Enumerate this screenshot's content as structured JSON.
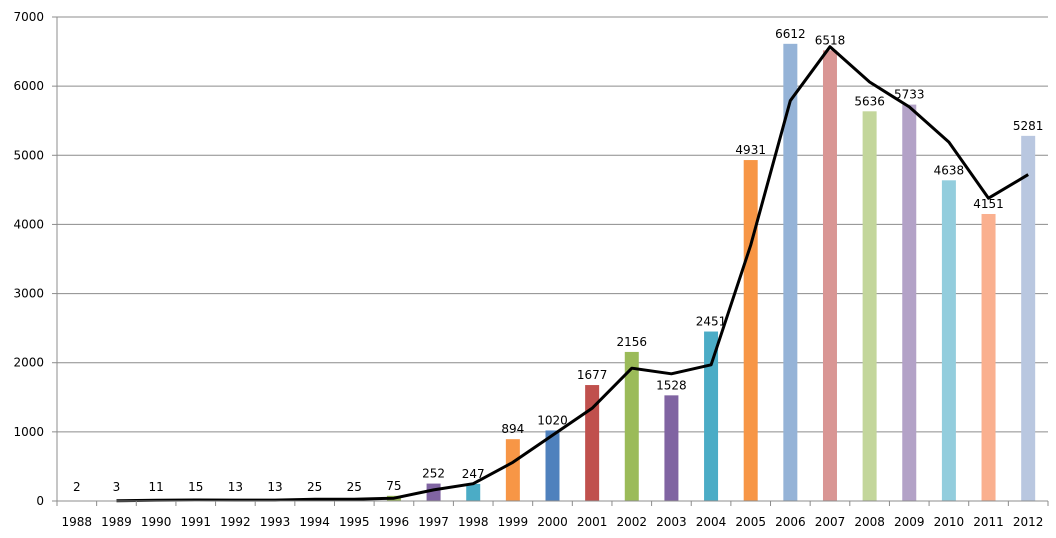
{
  "chart_data": {
    "type": "bar",
    "categories": [
      "1988",
      "1989",
      "1990",
      "1991",
      "1992",
      "1993",
      "1994",
      "1995",
      "1996",
      "1997",
      "1998",
      "1999",
      "2000",
      "2001",
      "2002",
      "2003",
      "2004",
      "2005",
      "2006",
      "2007",
      "2008",
      "2009",
      "2010",
      "2011",
      "2012"
    ],
    "series": [
      {
        "values": [
          2,
          3,
          11,
          15,
          13,
          13,
          25,
          25,
          75,
          252,
          247,
          894,
          1020,
          1677,
          2156,
          1528,
          2451,
          4931,
          6612,
          6518,
          5636,
          5733,
          4638,
          4151,
          5281
        ]
      }
    ],
    "trend_line": {
      "values": [
        2,
        3,
        11,
        15,
        13,
        13,
        25,
        25,
        40,
        160,
        250,
        560,
        950,
        1340,
        1920,
        1840,
        1970,
        3700,
        5790,
        6570,
        6060,
        5700,
        5190,
        4380,
        4720
      ],
      "color": "#000000"
    },
    "bar_colors": [
      "#4f81bd",
      "#c0504d",
      "#9bbb59",
      "#8064a2",
      "#4bacc6",
      "#f79646",
      "#4f81bd",
      "#c0504d",
      "#9bbb59",
      "#8064a2",
      "#4bacc6",
      "#f79646",
      "#4f81bd",
      "#c0504d",
      "#9bbb59",
      "#8064a2",
      "#4bacc6",
      "#f79646",
      "#95b3d7",
      "#d99694",
      "#c3d69b",
      "#b3a2c7",
      "#93cddd",
      "#fab08f",
      "#b9c7e0"
    ],
    "ylim": [
      0,
      7000
    ],
    "yticks": [
      0,
      1000,
      2000,
      3000,
      4000,
      5000,
      6000,
      7000
    ],
    "grid": true,
    "legend": "none"
  }
}
